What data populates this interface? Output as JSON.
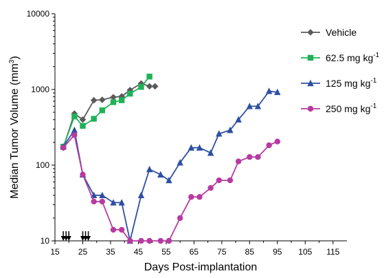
{
  "chart_data": {
    "type": "line",
    "xlabel": "Days Post-implantation",
    "ylabel": "Median Tumor Volume  (mm³)",
    "ylabel_main": "Median Tumor Volume  (mm",
    "ylabel_sup": "3",
    "ylabel_tail": ")",
    "y_scale": "log",
    "xlim": [
      15,
      120
    ],
    "ylim": [
      10,
      10000
    ],
    "x_ticks": [
      15,
      25,
      35,
      45,
      55,
      65,
      75,
      85,
      95,
      105,
      115
    ],
    "x_tick_labels": [
      "15",
      "25",
      "35",
      "45",
      "55",
      "65",
      "75",
      "85",
      "95",
      "105",
      "115"
    ],
    "y_ticks": [
      10,
      100,
      1000,
      10000
    ],
    "y_tick_labels": [
      "10",
      "100",
      "1000",
      "10000"
    ],
    "grid": false,
    "legend_position": "right",
    "dosing_days": [
      18,
      19,
      20,
      25,
      26,
      27
    ],
    "series": [
      {
        "name": "Vehicle",
        "label_main": "Vehicle",
        "label_sup": "",
        "color": "#5a5a5a",
        "marker": "diamond",
        "x": [
          18,
          22,
          25,
          29,
          32,
          36,
          39,
          42,
          46,
          49,
          51
        ],
        "y": [
          170,
          480,
          400,
          720,
          730,
          790,
          810,
          980,
          1200,
          1100,
          1100
        ]
      },
      {
        "name": "62.5 mg kg-1",
        "label_main": "62.5 mg kg",
        "label_sup": "-1",
        "color": "#1fb257",
        "marker": "square",
        "x": [
          18,
          22,
          25,
          29,
          32,
          36,
          39,
          42,
          46,
          49
        ],
        "y": [
          175,
          440,
          330,
          410,
          530,
          680,
          720,
          880,
          1080,
          1480
        ]
      },
      {
        "name": "125 mg kg-1",
        "label_main": "125 mg kg",
        "label_sup": "-1",
        "color": "#2e4fa3",
        "marker": "triangle",
        "x": [
          18,
          22,
          25,
          29,
          32,
          36,
          39,
          42,
          46,
          49,
          53,
          56,
          60,
          64,
          67,
          71,
          74,
          78,
          81,
          85,
          88,
          92,
          95
        ],
        "y": [
          175,
          290,
          75,
          40,
          40,
          32,
          32,
          10,
          40,
          88,
          75,
          63,
          108,
          170,
          170,
          145,
          260,
          290,
          400,
          600,
          600,
          950,
          920
        ]
      },
      {
        "name": "250 mg kg-1",
        "label_main": "250 mg kg",
        "label_sup": "-1",
        "color": "#b83aa0",
        "marker": "circle",
        "x": [
          18,
          22,
          25,
          29,
          32,
          36,
          39,
          42,
          46,
          49,
          53,
          56,
          60,
          64,
          67,
          71,
          74,
          78,
          81,
          85,
          88,
          92,
          95
        ],
        "y": [
          170,
          250,
          75,
          33,
          33,
          14,
          14,
          10,
          10,
          10,
          10,
          10,
          20,
          38,
          38,
          50,
          63,
          63,
          112,
          128,
          128,
          183,
          205
        ]
      }
    ]
  }
}
